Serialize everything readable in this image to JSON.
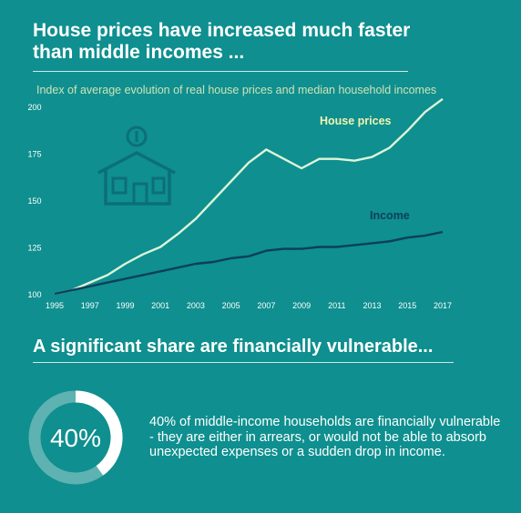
{
  "header": {
    "title_line1": "House prices have increased much faster",
    "title_line2": "than middle incomes ...",
    "subtitle": "Index of average evolution of real house prices and median household incomes"
  },
  "colors": {
    "background": "#0f8f8f",
    "house_line": "#dcf5d8",
    "income_line": "#0c3f5a",
    "house_label": "#f0f3b0",
    "icon": "#0c6f78",
    "donut_track": "#5fb2b2",
    "donut_fill": "#ffffff"
  },
  "chart_data": {
    "type": "line",
    "x": [
      1995,
      1996,
      1997,
      1998,
      1999,
      2000,
      2001,
      2002,
      2003,
      2004,
      2005,
      2006,
      2007,
      2008,
      2009,
      2010,
      2011,
      2012,
      2013,
      2014,
      2015,
      2016,
      2017
    ],
    "x_ticks": [
      "1995",
      "1997",
      "1999",
      "2001",
      "2003",
      "2005",
      "2007",
      "2009",
      "2011",
      "2013",
      "2015",
      "2017"
    ],
    "y_ticks": [
      "100",
      "125",
      "150",
      "175",
      "200"
    ],
    "ylim": [
      100,
      203
    ],
    "xlim": [
      1995,
      2017
    ],
    "grid": false,
    "series": [
      {
        "name": "House prices",
        "values": [
          100,
          102,
          106,
          110,
          116,
          121,
          125,
          132,
          140,
          150,
          160,
          170,
          177,
          172,
          167,
          172,
          172,
          171,
          173,
          178,
          187,
          197,
          204
        ]
      },
      {
        "name": "Income",
        "values": [
          100,
          102,
          104,
          106,
          108,
          110,
          112,
          114,
          116,
          117,
          119,
          120,
          123,
          124,
          124,
          125,
          125,
          126,
          127,
          128,
          130,
          131,
          133
        ]
      }
    ]
  },
  "section2": {
    "heading": "A significant share are financially vulnerable..."
  },
  "stat": {
    "percent": 40,
    "label": "40%",
    "description": "40% of middle-income households are financially vulnerable - they are either in arrears, or would not be able to absorb unexpected expenses or a sudden drop in income."
  }
}
